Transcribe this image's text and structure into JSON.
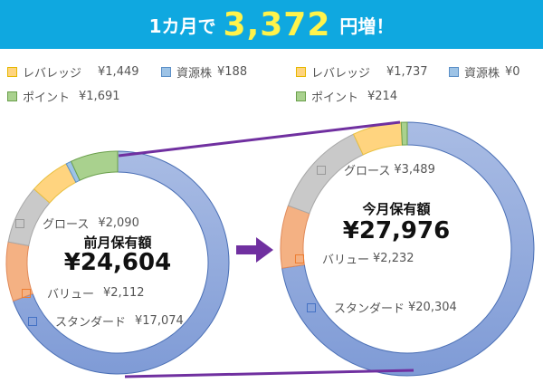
{
  "banner": {
    "prefix": "1カ月で",
    "amount": "3,372",
    "suffix": "円増！"
  },
  "prev_month": {
    "title": "前月保有額",
    "total": "¥24,604",
    "legend": [
      {
        "label": "レバレッジ",
        "value": "¥1,449",
        "color": "#ffd47f"
      },
      {
        "label": "資源株",
        "value": "¥188",
        "color": "#9dc3e6"
      },
      {
        "label": "ポイント",
        "value": "¥1,691",
        "color": "#a9d18e"
      }
    ],
    "labels": [
      {
        "label": "グロース",
        "value": "¥2,090",
        "color": "#a5a5a5"
      },
      {
        "label": "バリュー",
        "value": "¥2,112",
        "color": "#ed7d31"
      },
      {
        "label": "スタンダード",
        "value": "¥17,074",
        "color": "#4472c4"
      }
    ]
  },
  "curr_month": {
    "title": "今月保有額",
    "total": "¥27,976",
    "legend": [
      {
        "label": "レバレッジ",
        "value": "¥1,737",
        "color": "#ffd47f"
      },
      {
        "label": "資源株",
        "value": "¥0",
        "color": "#9dc3e6"
      },
      {
        "label": "ポイント",
        "value": "¥214",
        "color": "#a9d18e"
      }
    ],
    "labels": [
      {
        "label": "グロース",
        "value": "¥3,489",
        "color": "#a5a5a5"
      },
      {
        "label": "バリュー",
        "value": "¥2,232",
        "color": "#ed7d31"
      },
      {
        "label": "スタンダード",
        "value": "¥20,304",
        "color": "#4472c4"
      }
    ]
  },
  "chart_data": [
    {
      "type": "pie",
      "title": "前月保有額 ¥24,604",
      "categories": [
        "スタンダード",
        "バリュー",
        "グロース",
        "レバレッジ",
        "資源株",
        "ポイント"
      ],
      "values": [
        17074,
        2112,
        2090,
        1449,
        188,
        1691
      ],
      "colors": [
        "#8ea9db",
        "#f4b183",
        "#c9c9c9",
        "#ffd47f",
        "#9dc3e6",
        "#a9d18e"
      ],
      "donut": true
    },
    {
      "type": "pie",
      "title": "今月保有額 ¥27,976",
      "categories": [
        "スタンダード",
        "バリュー",
        "グロース",
        "レバレッジ",
        "資源株",
        "ポイント"
      ],
      "values": [
        20304,
        2232,
        3489,
        1737,
        0,
        214
      ],
      "colors": [
        "#8ea9db",
        "#f4b183",
        "#c9c9c9",
        "#ffd47f",
        "#9dc3e6",
        "#a9d18e"
      ],
      "donut": true
    }
  ]
}
